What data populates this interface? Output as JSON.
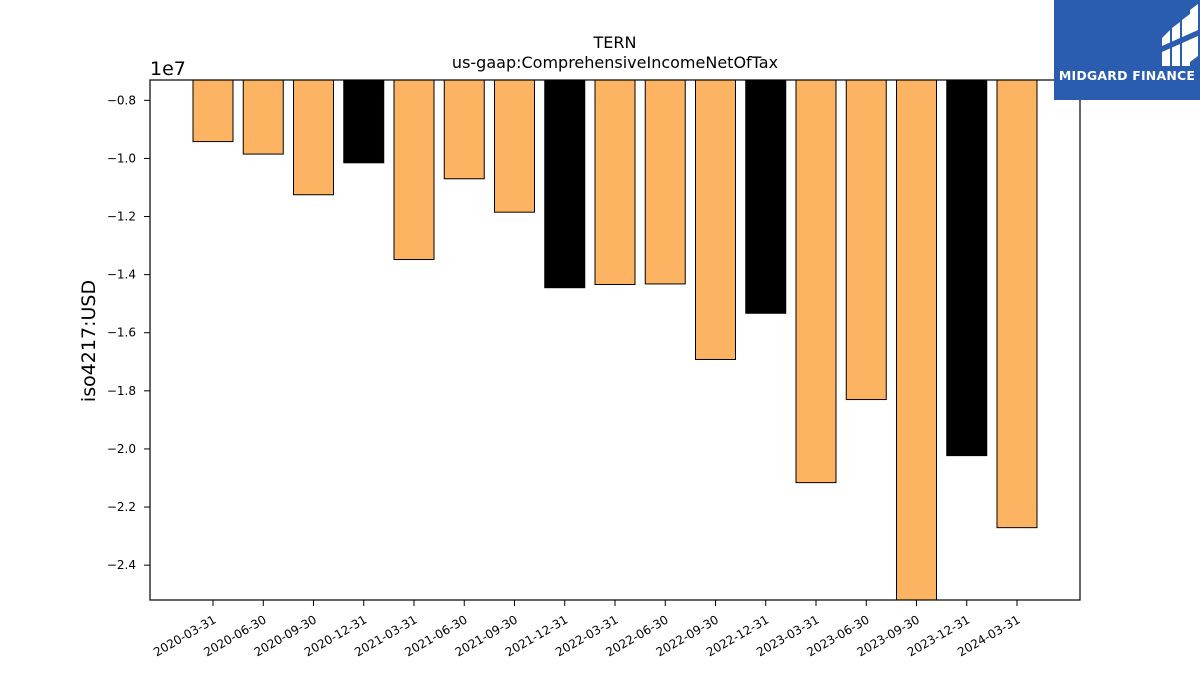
{
  "chart_data": {
    "type": "bar",
    "title": "TERN",
    "subtitle": "us-gaap:ComprehensiveIncomeNetOfTax",
    "ylabel": "iso4217:USD",
    "xlabel": "",
    "offset_label": "1e7",
    "scale": 10000000,
    "ylim": [
      -25200000,
      -7300000
    ],
    "yticks": [
      -8000000,
      -10000000,
      -12000000,
      -14000000,
      -16000000,
      -18000000,
      -20000000,
      -22000000,
      -24000000
    ],
    "ytick_labels": [
      "−0.8",
      "−1.0",
      "−1.2",
      "−1.4",
      "−1.6",
      "−1.8",
      "−2.0",
      "−2.2",
      "−2.4"
    ],
    "grid": false,
    "categories": [
      "2020-03-31",
      "2020-06-30",
      "2020-09-30",
      "2020-12-31",
      "2021-03-31",
      "2021-06-30",
      "2021-09-30",
      "2021-12-31",
      "2022-03-31",
      "2022-06-30",
      "2022-09-30",
      "2022-12-31",
      "2023-03-31",
      "2023-06-30",
      "2023-09-30",
      "2023-12-31",
      "2024-03-31"
    ],
    "values": [
      -9420000,
      -9850000,
      -11250000,
      -10150000,
      -13480000,
      -10700000,
      -11850000,
      -14450000,
      -14340000,
      -14320000,
      -16920000,
      -15330000,
      -21160000,
      -18300000,
      -25200000,
      -20230000,
      -22710000
    ],
    "bar_colors": [
      "#fdb462",
      "#fdb462",
      "#fdb462",
      "#000000",
      "#fdb462",
      "#fdb462",
      "#fdb462",
      "#000000",
      "#fdb462",
      "#fdb462",
      "#fdb462",
      "#000000",
      "#fdb462",
      "#fdb462",
      "#fdb462",
      "#000000",
      "#fdb462"
    ]
  },
  "logo": {
    "text": "MIDGARD FINANCE",
    "color": "#2a5db0"
  }
}
